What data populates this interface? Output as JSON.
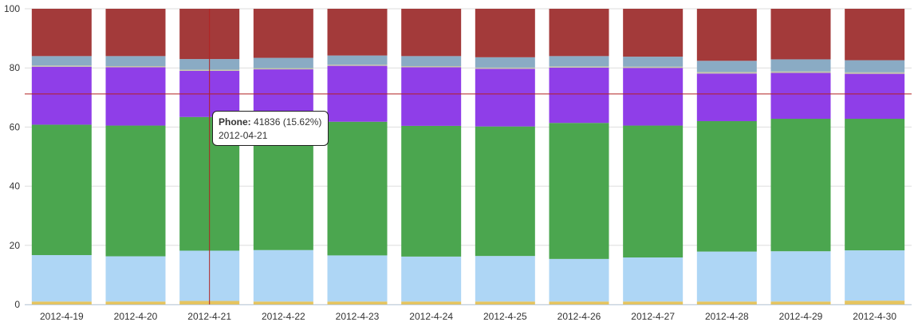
{
  "chart_data": {
    "type": "bar",
    "stacked": true,
    "percent": true,
    "categories": [
      "2012-4-19",
      "2012-4-20",
      "2012-4-21",
      "2012-4-22",
      "2012-4-23",
      "2012-4-24",
      "2012-4-25",
      "2012-4-26",
      "2012-4-27",
      "2012-4-28",
      "2012-4-29",
      "2012-4-30"
    ],
    "ylim": [
      0,
      100
    ],
    "yticks": [
      0,
      20,
      40,
      60,
      80,
      100
    ],
    "grid": true,
    "series": [
      {
        "color": "#e5c460",
        "values": [
          1.0,
          1.0,
          1.2,
          1.0,
          1.0,
          1.0,
          1.0,
          1.0,
          1.0,
          1.0,
          1.0,
          1.3
        ]
      },
      {
        "color": "#aed6f5",
        "values": [
          15.7,
          15.3,
          17.0,
          17.4,
          15.6,
          15.2,
          15.4,
          14.4,
          14.9,
          16.9,
          17.0,
          17.0
        ]
      },
      {
        "color": "#4ba64f",
        "values": [
          44.1,
          44.2,
          45.2,
          42.5,
          45.2,
          44.2,
          43.8,
          46.0,
          44.6,
          44.1,
          44.8,
          44.5
        ]
      },
      {
        "color": "#8f3ee8",
        "values": [
          19.6,
          19.7,
          15.6,
          18.6,
          18.9,
          19.8,
          19.5,
          18.7,
          19.5,
          16.1,
          15.5,
          15.2
        ]
      },
      {
        "color": "#c4c4a8",
        "values": [
          0.4,
          0.4,
          0.4,
          0.4,
          0.4,
          0.4,
          0.4,
          0.4,
          0.4,
          0.5,
          0.5,
          0.5
        ]
      },
      {
        "color": "#8aabc4",
        "values": [
          3.2,
          3.4,
          3.6,
          3.5,
          3.1,
          3.4,
          3.5,
          3.5,
          3.4,
          3.8,
          4.1,
          4.1
        ]
      },
      {
        "color": "#a33a3a",
        "values": [
          16.0,
          16.0,
          17.0,
          16.6,
          15.8,
          16.0,
          16.4,
          16.0,
          16.2,
          17.6,
          17.1,
          17.4
        ]
      }
    ],
    "crosshair": {
      "x_category": "2012-4-21",
      "y_value": 71.2
    },
    "tooltip": {
      "series_name": "Phone:",
      "value_text": "41836 (15.62%)",
      "date": "2012-04-21"
    }
  }
}
